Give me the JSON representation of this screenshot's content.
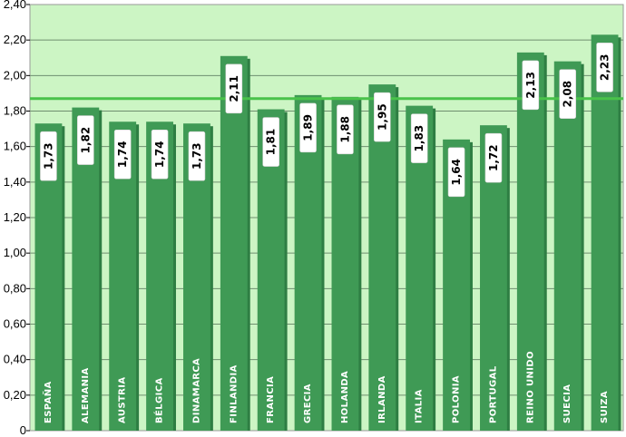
{
  "chart_data": {
    "type": "bar",
    "categories": [
      "ESPAÑA",
      "ALEMANIA",
      "AUSTRIA",
      "BÉLGICA",
      "DINAMARCA",
      "FINLANDIA",
      "FRANCIA",
      "GRECIA",
      "HOLANDA",
      "IRLANDA",
      "ITALIA",
      "POLONIA",
      "PORTUGAL",
      "REINO UNIDO",
      "SUECIA",
      "SUIZA"
    ],
    "values": [
      1.73,
      1.82,
      1.74,
      1.74,
      1.73,
      2.11,
      1.81,
      1.89,
      1.88,
      1.95,
      1.83,
      1.64,
      1.72,
      2.13,
      2.08,
      2.23
    ],
    "value_labels": [
      "1,73",
      "1,82",
      "1,74",
      "1,74",
      "1,73",
      "2,11",
      "1,81",
      "1,89",
      "1,88",
      "1,95",
      "1,83",
      "1,64",
      "1,72",
      "2,13",
      "2,08",
      "2,23"
    ],
    "reference_line": 1.87,
    "ylim": [
      0,
      2.4
    ],
    "yticks": [
      0,
      0.2,
      0.4,
      0.6,
      0.8,
      1.0,
      1.2,
      1.4,
      1.6,
      1.8,
      2.0,
      2.2,
      2.4
    ],
    "ytick_labels": [
      "0",
      "0,20",
      "0,40",
      "0,60",
      "0,80",
      "1,00",
      "1,20",
      "1,40",
      "1,60",
      "1,80",
      "2,00",
      "2,20",
      "2,40"
    ],
    "title": "",
    "xlabel": "",
    "ylabel": "",
    "grid": true,
    "colors": {
      "plot_background": "#ccf5c4",
      "bar": "#3f9a55",
      "bar_shadow": "#2e7e43",
      "gridline": "#6f8f6f",
      "reference_line": "#49c24a"
    }
  }
}
